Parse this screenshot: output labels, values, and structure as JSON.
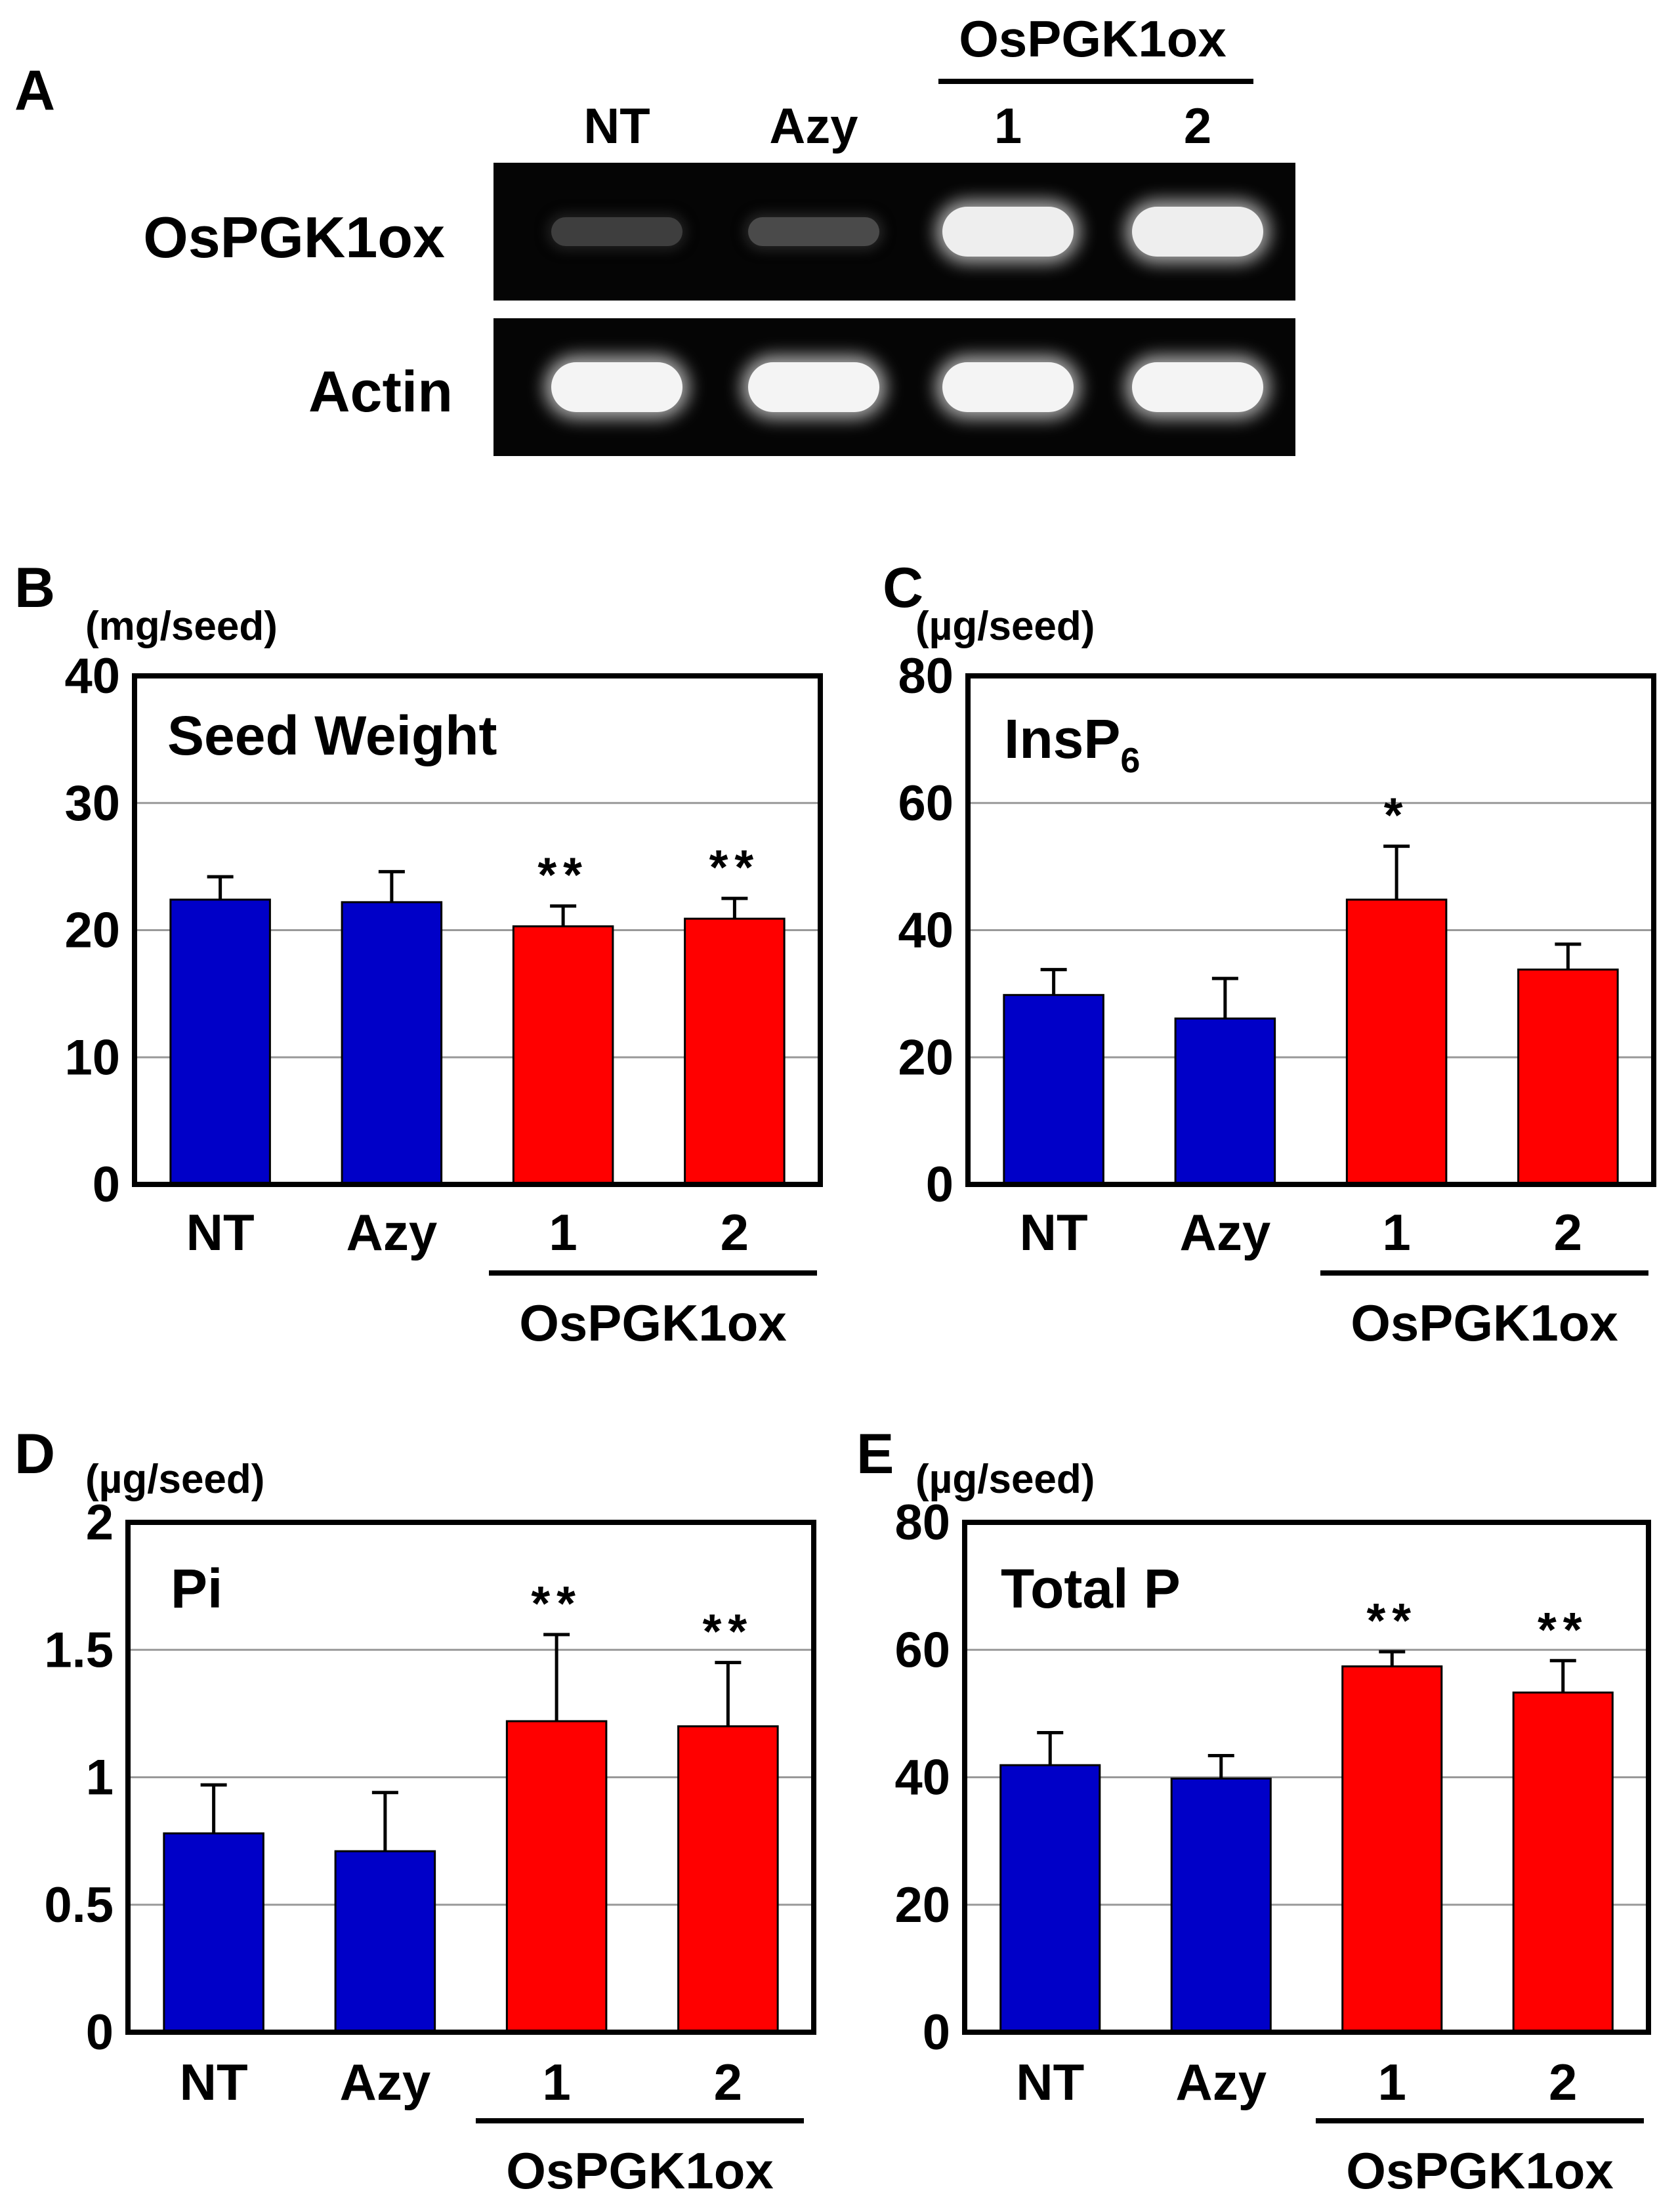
{
  "panel_a": {
    "letter": "A",
    "group_label": "OsPGK1ox",
    "lanes": [
      "NT",
      "Azy",
      "1",
      "2"
    ],
    "rows": [
      {
        "label": "OsPGK1ox",
        "intensity": [
          0.1,
          0.16,
          0.92,
          0.92
        ]
      },
      {
        "label": "Actin",
        "intensity": [
          0.95,
          0.95,
          0.95,
          0.95
        ]
      }
    ]
  },
  "colors": {
    "control": "#0000c8",
    "overexpressor": "#ff0000",
    "grid": "#999999"
  },
  "chart_data": [
    {
      "panel": "B",
      "type": "bar",
      "title": "Seed Weight",
      "title_sub": "",
      "unit": "(mg/seed)",
      "categories": [
        "NT",
        "Azy",
        "1",
        "2"
      ],
      "group_label": "OsPGK1ox",
      "values": [
        22.4,
        22.2,
        20.3,
        20.9
      ],
      "errors": [
        1.8,
        2.4,
        1.6,
        1.6
      ],
      "marks": [
        "",
        "",
        "**",
        "**"
      ],
      "yticks": [
        "0",
        "10",
        "20",
        "30",
        "40"
      ],
      "ylim": [
        0,
        40
      ],
      "grid": true
    },
    {
      "panel": "C",
      "type": "bar",
      "title": "InsP",
      "title_sub": "6",
      "unit": "(µg/seed)",
      "categories": [
        "NT",
        "Azy",
        "1",
        "2"
      ],
      "group_label": "OsPGK1ox",
      "values": [
        29.8,
        26.1,
        44.8,
        33.8
      ],
      "errors": [
        4.0,
        6.3,
        8.4,
        4.0
      ],
      "marks": [
        "",
        "",
        "*",
        ""
      ],
      "yticks": [
        "0",
        "20",
        "40",
        "60",
        "80"
      ],
      "ylim": [
        0,
        80
      ],
      "grid": true
    },
    {
      "panel": "D",
      "type": "bar",
      "title": "Pi",
      "title_sub": "",
      "unit": "(µg/seed)",
      "categories": [
        "NT",
        "Azy",
        "1",
        "2"
      ],
      "group_label": "OsPGK1ox",
      "values": [
        0.78,
        0.71,
        1.22,
        1.2
      ],
      "errors": [
        0.19,
        0.23,
        0.34,
        0.25
      ],
      "marks": [
        "",
        "",
        "**",
        "**"
      ],
      "yticks": [
        "0",
        "0.5",
        "1",
        "1.5",
        "2"
      ],
      "ylim": [
        0,
        2
      ],
      "grid": true
    },
    {
      "panel": "E",
      "type": "bar",
      "title": "Total P",
      "title_sub": "",
      "unit": "(µg/seed)",
      "categories": [
        "NT",
        "Azy",
        "1",
        "2"
      ],
      "group_label": "OsPGK1ox",
      "values": [
        41.9,
        39.8,
        57.4,
        53.3
      ],
      "errors": [
        5.1,
        3.6,
        2.3,
        5.0
      ],
      "marks": [
        "",
        "",
        "**",
        "**"
      ],
      "yticks": [
        "0",
        "20",
        "40",
        "60",
        "80"
      ],
      "ylim": [
        0,
        80
      ],
      "grid": true
    }
  ]
}
